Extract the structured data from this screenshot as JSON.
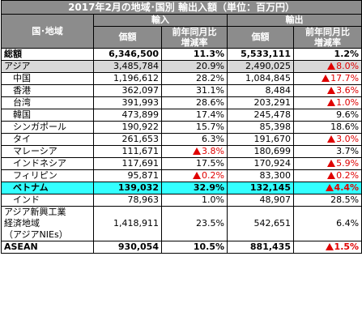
{
  "title": "2017年2月の地域･国別 輸出入額（単位：百万円）",
  "headers": {
    "region": "国･地域",
    "import": "輸入",
    "export": "輸出",
    "value": "価額",
    "yoy_line1": "前年同月比",
    "yoy_line2": "増減率"
  },
  "rows": [
    {
      "name": "総額",
      "imp": "6,346,500",
      "imp_pct": "11.3%",
      "imp_neg": false,
      "exp": "5,533,111",
      "exp_pct": "1.2%",
      "exp_neg": false
    },
    {
      "name": "アジア",
      "imp": "3,485,784",
      "imp_pct": "20.9%",
      "imp_neg": false,
      "exp": "2,490,025",
      "exp_pct": "8.0%",
      "exp_neg": true
    },
    {
      "name": "中国",
      "imp": "1,196,612",
      "imp_pct": "28.2%",
      "imp_neg": false,
      "exp": "1,084,845",
      "exp_pct": "17.7%",
      "exp_neg": true
    },
    {
      "name": "香港",
      "imp": "362,097",
      "imp_pct": "31.1%",
      "imp_neg": false,
      "exp": "8,484",
      "exp_pct": "3.6%",
      "exp_neg": true
    },
    {
      "name": "台湾",
      "imp": "391,993",
      "imp_pct": "28.6%",
      "imp_neg": false,
      "exp": "203,291",
      "exp_pct": "1.0%",
      "exp_neg": true
    },
    {
      "name": "韓国",
      "imp": "473,899",
      "imp_pct": "17.4%",
      "imp_neg": false,
      "exp": "245,478",
      "exp_pct": "9.6%",
      "exp_neg": false
    },
    {
      "name": "シンガポール",
      "imp": "190,922",
      "imp_pct": "15.7%",
      "imp_neg": false,
      "exp": "85,398",
      "exp_pct": "18.6%",
      "exp_neg": false
    },
    {
      "name": "タイ",
      "imp": "261,653",
      "imp_pct": "6.3%",
      "imp_neg": false,
      "exp": "191,670",
      "exp_pct": "3.0%",
      "exp_neg": true
    },
    {
      "name": "マレーシア",
      "imp": "111,671",
      "imp_pct": "3.8%",
      "imp_neg": true,
      "exp": "180,699",
      "exp_pct": "3.7%",
      "exp_neg": false
    },
    {
      "name": "インドネシア",
      "imp": "117,691",
      "imp_pct": "17.5%",
      "imp_neg": false,
      "exp": "170,924",
      "exp_pct": "5.9%",
      "exp_neg": true
    },
    {
      "name": "フィリピン",
      "imp": "95,871",
      "imp_pct": "0.2%",
      "imp_neg": true,
      "exp": "83,300",
      "exp_pct": "0.2%",
      "exp_neg": true
    },
    {
      "name": "ベトナム",
      "imp": "139,032",
      "imp_pct": "32.9%",
      "imp_neg": false,
      "exp": "132,145",
      "exp_pct": "4.4%",
      "exp_neg": true
    },
    {
      "name": "インド",
      "imp": "78,963",
      "imp_pct": "1.0%",
      "imp_neg": false,
      "exp": "48,907",
      "exp_pct": "28.5%",
      "exp_neg": false
    },
    {
      "name_lines": [
        "アジア新興工業",
        "経済地域",
        "（アジアNIEs）"
      ],
      "imp": "1,418,911",
      "imp_pct": "23.5%",
      "imp_neg": false,
      "exp": "542,651",
      "exp_pct": "6.4%",
      "exp_neg": false
    },
    {
      "name": "ASEAN",
      "imp": "930,054",
      "imp_pct": "10.5%",
      "imp_neg": false,
      "exp": "881,435",
      "exp_pct": "1.5%",
      "exp_neg": true
    }
  ],
  "colors": {
    "header_bg": "#8c8c8c",
    "subtotal_bg": "#d8d8d8",
    "highlight_bg": "#33ffff",
    "negative": "#e00000"
  }
}
